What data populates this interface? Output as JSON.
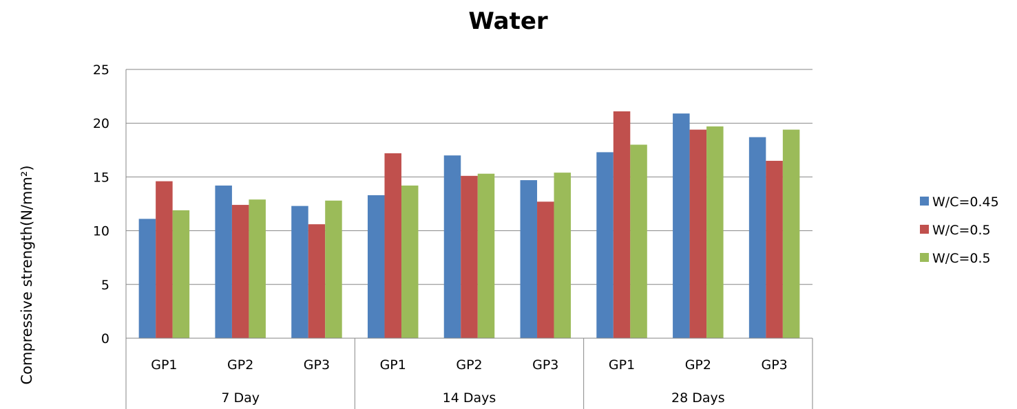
{
  "chart_data": {
    "type": "bar",
    "title": "Water",
    "xlabel": "",
    "ylabel": "Compressive strength(N/mm²)",
    "ylim": [
      0,
      25
    ],
    "yticks": [
      0,
      5,
      10,
      15,
      20,
      25
    ],
    "grid": true,
    "legend": "right",
    "categories": [
      "GP1",
      "GP2",
      "GP3",
      "GP1",
      "GP2",
      "GP3",
      "GP1",
      "GP2",
      "GP3"
    ],
    "groups": [
      {
        "label": "7 Day",
        "count": 3
      },
      {
        "label": "14 Days",
        "count": 3
      },
      {
        "label": "28 Days",
        "count": 3
      }
    ],
    "series": [
      {
        "name": "W/C=0.45",
        "color": "#4F81BD",
        "values": [
          11.1,
          14.2,
          12.3,
          13.3,
          17.0,
          14.7,
          17.3,
          20.9,
          18.7
        ]
      },
      {
        "name": "W/C=0.5",
        "color": "#C0504D",
        "values": [
          14.6,
          12.4,
          10.6,
          17.2,
          15.1,
          12.7,
          21.1,
          19.4,
          16.5
        ]
      },
      {
        "name": "W/C=0.5",
        "color": "#9BBB59",
        "values": [
          11.9,
          12.9,
          12.8,
          14.2,
          15.3,
          15.4,
          18.0,
          19.7,
          19.4
        ]
      }
    ]
  }
}
